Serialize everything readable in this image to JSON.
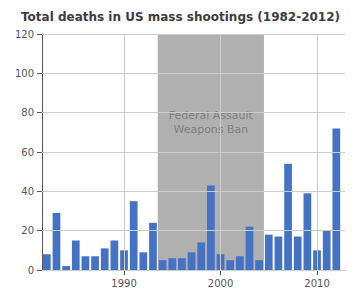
{
  "chart_data": {
    "type": "bar",
    "title": "Total deaths in US mass shootings (1982-2012)",
    "x": [
      1982,
      1983,
      1984,
      1985,
      1986,
      1987,
      1988,
      1989,
      1990,
      1991,
      1992,
      1993,
      1994,
      1995,
      1996,
      1997,
      1998,
      1999,
      2000,
      2001,
      2002,
      2003,
      2004,
      2005,
      2006,
      2007,
      2008,
      2009,
      2010,
      2011,
      2012
    ],
    "values": [
      8,
      29,
      2,
      15,
      7,
      7,
      11,
      15,
      10,
      35,
      9,
      24,
      5,
      6,
      6,
      9,
      14,
      43,
      8,
      5,
      7,
      22,
      5,
      18,
      17,
      54,
      17,
      39,
      10,
      20,
      72
    ],
    "color": "#4472c4",
    "shaded": {
      "from": 1993.5,
      "to": 2004.5,
      "color": "#b0b0b0"
    },
    "annotations": [
      {
        "text": "Federal Assault\nWeapons Ban",
        "x": 1999.0,
        "y": 75,
        "color": "#707070"
      }
    ],
    "xlim": [
      1981.5,
      2012.9
    ],
    "xticks": [
      1990,
      2000,
      2010
    ],
    "ylim": [
      0,
      120
    ],
    "yticks": [
      0,
      20,
      40,
      60,
      80,
      100,
      120
    ],
    "grid": true
  }
}
